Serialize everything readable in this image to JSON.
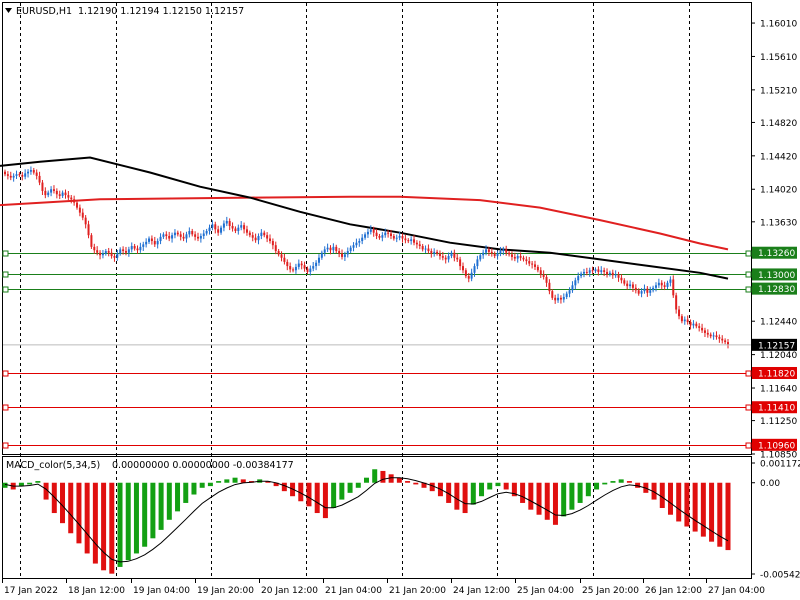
{
  "header": {
    "symbol_label": "EURUSD,H1",
    "quotes": "1.12190 1.12194 1.12150 1.12157",
    "menu_arrow": "triangle-down-icon"
  },
  "price_axis": {
    "ticks": [
      "1.16010",
      "1.15610",
      "1.15210",
      "1.14820",
      "1.14420",
      "1.14020",
      "1.13630",
      "1.12440",
      "1.12040",
      "1.11640",
      "1.11250",
      "1.10850"
    ],
    "current_price": "1.12157"
  },
  "levels": [
    {
      "label": "1.13260",
      "value": 1.1326,
      "color": "#1a7f1a"
    },
    {
      "label": "1.13000",
      "value": 1.13,
      "color": "#1a7f1a"
    },
    {
      "label": "1.12830",
      "value": 1.1283,
      "color": "#1a7f1a"
    },
    {
      "label": "1.11820",
      "value": 1.1182,
      "color": "#e00000"
    },
    {
      "label": "1.11410",
      "value": 1.1141,
      "color": "#e00000"
    },
    {
      "label": "1.10960",
      "value": 1.1096,
      "color": "#e00000"
    }
  ],
  "time_axis": {
    "labels": [
      "17 Jan 2022",
      "18 Jan 12:00",
      "19 Jan 04:00",
      "19 Jan 20:00",
      "20 Jan 12:00",
      "21 Jan 04:00",
      "21 Jan 20:00",
      "24 Jan 12:00",
      "25 Jan 04:00",
      "25 Jan 20:00",
      "26 Jan 12:00",
      "27 Jan 04:00"
    ]
  },
  "macd": {
    "label": "MACD_color(5,34,5)",
    "values": "0.00000000 0.00000000 -0.00384177",
    "axis_ticks": [
      "0.0011721",
      "0.00",
      "-0.005420"
    ]
  },
  "colors": {
    "bull": "#1f6fd1",
    "bear": "#e02020",
    "hist_up": "#13a013",
    "hist_down": "#e01010",
    "ma_slow": "#e02020",
    "ma_fast": "#000000",
    "grid": "#000000"
  },
  "chart_data": {
    "type": "candlestick",
    "symbol": "EURUSD",
    "timeframe": "H1",
    "ylim": [
      1.1085,
      1.1625
    ],
    "close": [
      1.142,
      1.1418,
      1.1416,
      1.1418,
      1.142,
      1.1419,
      1.1417,
      1.1421,
      1.1423,
      1.1425,
      1.1422,
      1.1418,
      1.141,
      1.14,
      1.1395,
      1.1398,
      1.1402,
      1.14,
      1.1396,
      1.1394,
      1.1398,
      1.1395,
      1.1392,
      1.139,
      1.1386,
      1.138,
      1.1374,
      1.1368,
      1.136,
      1.1347,
      1.1333,
      1.1329,
      1.1326,
      1.1323,
      1.1325,
      1.1328,
      1.1326,
      1.1322,
      1.132,
      1.1325,
      1.133,
      1.1328,
      1.1326,
      1.133,
      1.1334,
      1.1331,
      1.1329,
      1.1333,
      1.1336,
      1.1339,
      1.1343,
      1.134,
      1.1336,
      1.134,
      1.1345,
      1.1348,
      1.1346,
      1.1343,
      1.1347,
      1.135,
      1.1348,
      1.1345,
      1.1343,
      1.1348,
      1.1352,
      1.1348,
      1.1345,
      1.1343,
      1.1346,
      1.1349,
      1.1352,
      1.1356,
      1.136,
      1.1354,
      1.135,
      1.1356,
      1.1361,
      1.1364,
      1.1358,
      1.1355,
      1.1352,
      1.1356,
      1.1359,
      1.1354,
      1.135,
      1.1347,
      1.1344,
      1.1341,
      1.1346,
      1.135,
      1.1347,
      1.1343,
      1.134,
      1.1335,
      1.1328,
      1.1324,
      1.132,
      1.1315,
      1.131,
      1.1306,
      1.1305,
      1.1309,
      1.1313,
      1.1311,
      1.1307,
      1.1303,
      1.1307,
      1.131,
      1.1314,
      1.132,
      1.1326,
      1.133,
      1.1332,
      1.1329,
      1.1333,
      1.1328,
      1.1325,
      1.1321,
      1.1324,
      1.1328,
      1.1332,
      1.1335,
      1.1338,
      1.134,
      1.1344,
      1.1348,
      1.1351,
      1.1354,
      1.135,
      1.1346,
      1.1344,
      1.1347,
      1.135,
      1.1349,
      1.1346,
      1.1343,
      1.1344,
      1.1346,
      1.1343,
      1.1341,
      1.134,
      1.1342,
      1.1338,
      1.1336,
      1.1334,
      1.133,
      1.1331,
      1.1328,
      1.1325,
      1.1327,
      1.1325,
      1.1322,
      1.132,
      1.1318,
      1.1322,
      1.1326,
      1.132,
      1.1318,
      1.131,
      1.1305,
      1.1298,
      1.1295,
      1.1302,
      1.131,
      1.1318,
      1.1323,
      1.1326,
      1.133,
      1.1327,
      1.1325,
      1.1322,
      1.1325,
      1.1328,
      1.133,
      1.1326,
      1.1324,
      1.1321,
      1.1319,
      1.1322,
      1.132,
      1.1318,
      1.1316,
      1.1313,
      1.1312,
      1.1309,
      1.1305,
      1.13,
      1.1297,
      1.129,
      1.128,
      1.1272,
      1.1269,
      1.1272,
      1.127,
      1.1273,
      1.1277,
      1.1281,
      1.1287,
      1.1293,
      1.1298,
      1.1301,
      1.1303,
      1.1302,
      1.1305,
      1.1304,
      1.1306,
      1.1303,
      1.1305,
      1.1303,
      1.13,
      1.1302,
      1.1299,
      1.13,
      1.1296,
      1.1293,
      1.1289,
      1.1286,
      1.1288,
      1.1284,
      1.1281,
      1.1277,
      1.128,
      1.1283,
      1.1278,
      1.1281,
      1.1284,
      1.1287,
      1.129,
      1.1287,
      1.1285,
      1.129,
      1.1294,
      1.1275,
      1.1258,
      1.125,
      1.1244,
      1.1246,
      1.1243,
      1.1239,
      1.1241,
      1.1238,
      1.1236,
      1.1233,
      1.123,
      1.1228,
      1.1226,
      1.1227,
      1.1225,
      1.1223,
      1.1221,
      1.1219,
      1.12157
    ],
    "ma_slow": [
      [
        0,
        1.1383
      ],
      [
        100,
        1.139
      ],
      [
        250,
        1.1392
      ],
      [
        350,
        1.1393
      ],
      [
        400,
        1.1393
      ],
      [
        480,
        1.1389
      ],
      [
        540,
        1.138
      ],
      [
        600,
        1.1365
      ],
      [
        660,
        1.1349
      ],
      [
        700,
        1.1337
      ],
      [
        728,
        1.133
      ]
    ],
    "ma_fast": [
      [
        0,
        1.143
      ],
      [
        40,
        1.1435
      ],
      [
        90,
        1.144
      ],
      [
        150,
        1.1422
      ],
      [
        200,
        1.1405
      ],
      [
        250,
        1.1392
      ],
      [
        300,
        1.1375
      ],
      [
        350,
        1.136
      ],
      [
        400,
        1.135
      ],
      [
        450,
        1.1338
      ],
      [
        500,
        1.133
      ],
      [
        550,
        1.1326
      ],
      [
        600,
        1.1318
      ],
      [
        650,
        1.131
      ],
      [
        700,
        1.1302
      ],
      [
        728,
        1.1295
      ]
    ],
    "macd_hist": [
      -0.0003,
      -0.0004,
      -0.0002,
      -0.0001,
      0.0001,
      -0.001,
      -0.0018,
      -0.0024,
      -0.003,
      -0.0036,
      -0.0042,
      -0.0048,
      -0.0052,
      -0.0054,
      -0.005,
      -0.0046,
      -0.0042,
      -0.0038,
      -0.0033,
      -0.0028,
      -0.0022,
      -0.0017,
      -0.0012,
      -0.0007,
      -0.0003,
      -0.0002,
      0.0001,
      0.0002,
      0.0003,
      0.0002,
      0.0001,
      0.0002,
      0.0001,
      -0.0002,
      -0.0005,
      -0.0008,
      -0.0011,
      -0.0014,
      -0.0018,
      -0.0021,
      -0.0015,
      -0.001,
      -0.0006,
      -0.0003,
      0.0003,
      0.0008,
      0.0007,
      0.0005,
      0.0003,
      0.0001,
      -0.0001,
      -0.0003,
      -0.0005,
      -0.0008,
      -0.0012,
      -0.0016,
      -0.0018,
      -0.0013,
      -0.0008,
      -0.0004,
      -0.0002,
      -0.0004,
      -0.0008,
      -0.0012,
      -0.0016,
      -0.0019,
      -0.0022,
      -0.0025,
      -0.002,
      -0.0016,
      -0.0012,
      -0.0008,
      -0.0004,
      -0.0001,
      0.0001,
      0.0002,
      0.0001,
      -0.0003,
      -0.0006,
      -0.001,
      -0.0015,
      -0.0019,
      -0.0023,
      -0.0026,
      -0.0029,
      -0.0032,
      -0.0035,
      -0.0038,
      -0.004
    ]
  }
}
